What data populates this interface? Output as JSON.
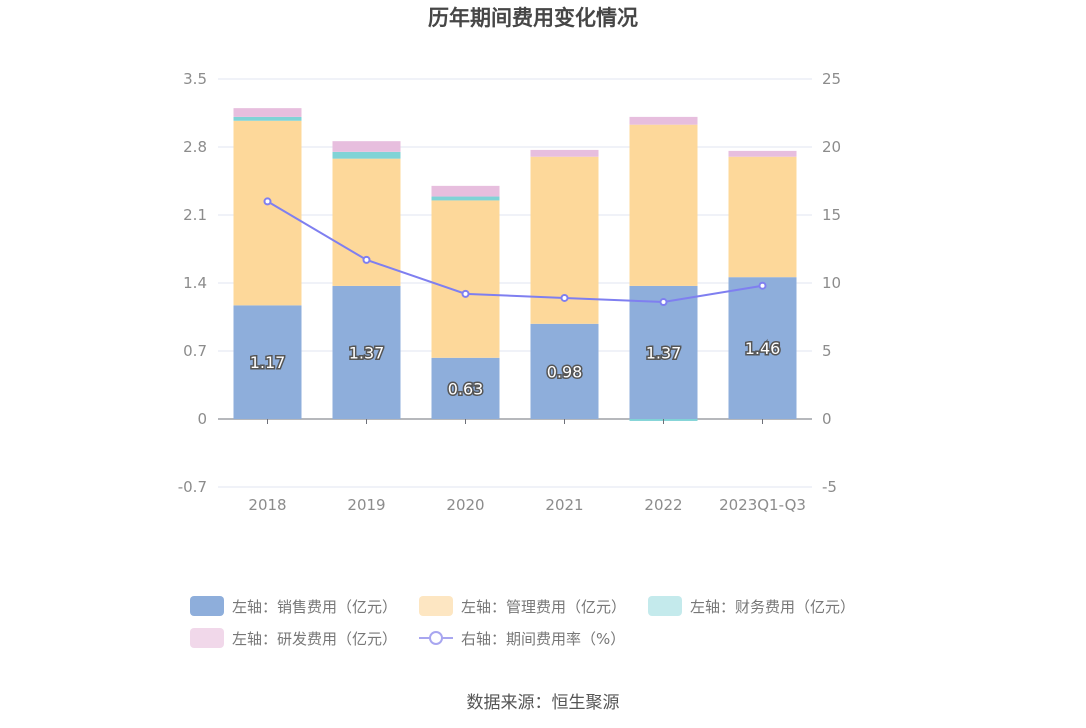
{
  "chart_data": {
    "type": "bar",
    "title": "历年期间费用变化情况",
    "categories": [
      "2018",
      "2019",
      "2020",
      "2021",
      "2022",
      "2023Q1-Q3"
    ],
    "stacked": true,
    "series": [
      {
        "name": "左轴：销售费用（亿元）",
        "axis": "left",
        "type": "bar",
        "color": "#8eaedb",
        "values": [
          1.17,
          1.37,
          0.63,
          0.98,
          1.37,
          1.46
        ],
        "labels": [
          "1.17",
          "1.37",
          "0.63",
          "0.98",
          "1.37",
          "1.46"
        ]
      },
      {
        "name": "左轴：管理费用（亿元）",
        "axis": "left",
        "type": "bar",
        "color": "#fdd89a",
        "values": [
          1.9,
          1.31,
          1.62,
          1.72,
          1.66,
          1.24
        ]
      },
      {
        "name": "左轴：财务费用（亿元）",
        "axis": "left",
        "type": "bar",
        "color": "#80d3d6",
        "values": [
          0.04,
          0.07,
          0.04,
          0.0,
          -0.02,
          0.0
        ]
      },
      {
        "name": "左轴：研发费用（亿元）",
        "axis": "left",
        "type": "bar",
        "color": "#e7bede",
        "values": [
          0.09,
          0.11,
          0.11,
          0.07,
          0.08,
          0.06
        ]
      },
      {
        "name": "右轴：期间费用率（%）",
        "axis": "right",
        "type": "line",
        "color": "#7f7ff0",
        "values": [
          16.0,
          11.7,
          9.2,
          8.9,
          8.6,
          9.8
        ]
      }
    ],
    "left_axis": {
      "min": -0.7,
      "max": 3.5,
      "ticks": [
        "-0.7",
        "0",
        "0.7",
        "1.4",
        "2.1",
        "2.8",
        "3.5"
      ]
    },
    "right_axis": {
      "min": -5,
      "max": 25,
      "ticks": [
        "-5",
        "0",
        "5",
        "10",
        "15",
        "20",
        "25"
      ]
    },
    "source": "数据来源：恒生聚源"
  }
}
